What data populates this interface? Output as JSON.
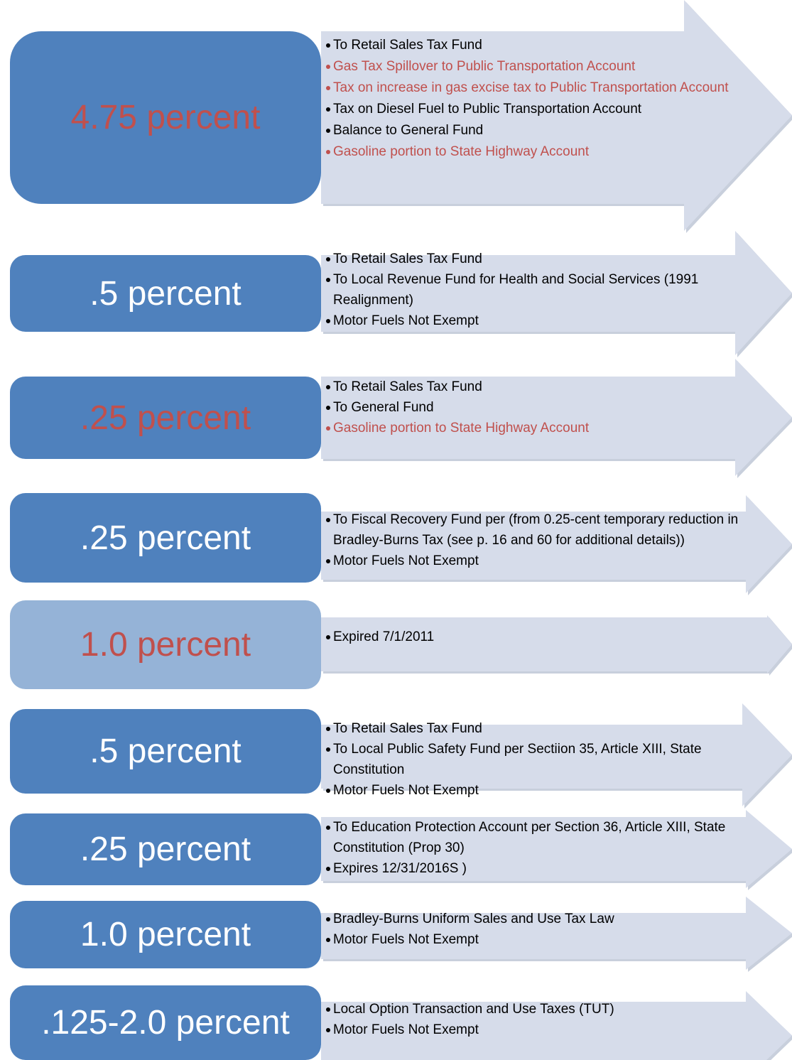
{
  "rows": [
    {
      "label": "4.75 percent",
      "label_color": "#c0504d",
      "box_color": "#4f81bd",
      "items": [
        {
          "text": "To Retail Sales Tax Fund",
          "color": "#000000"
        },
        {
          "text": "Gas Tax Spillover to Public Transportation Account",
          "color": "#c0504d"
        },
        {
          "text": "Tax on increase in gas excise tax to Public Transportation Account",
          "color": "#c0504d"
        },
        {
          "text": "Tax on Diesel Fuel to Public Transportation Account",
          "color": "#000000"
        },
        {
          "text": "Balance to General Fund",
          "color": "#000000"
        },
        {
          "text": "Gasoline portion to State Highway Account",
          "color": "#c0504d"
        }
      ]
    },
    {
      "label": ".5 percent",
      "label_color": "#ffffff",
      "box_color": "#4f81bd",
      "items": [
        {
          "text": "To Retail Sales Tax Fund",
          "color": "#000000"
        },
        {
          "text": "To Local Revenue Fund for Health and Social Services (1991 Realignment)",
          "color": "#000000"
        },
        {
          "text": "Motor Fuels Not Exempt",
          "color": "#000000"
        }
      ]
    },
    {
      "label": ".25 percent",
      "label_color": "#c0504d",
      "box_color": "#4f81bd",
      "items": [
        {
          "text": "To Retail Sales Tax Fund",
          "color": "#000000"
        },
        {
          "text": "To General Fund",
          "color": "#000000"
        },
        {
          "text": "Gasoline portion to State Highway Account",
          "color": "#c0504d"
        }
      ]
    },
    {
      "label": ".25 percent",
      "label_color": "#ffffff",
      "box_color": "#4f81bd",
      "items": [
        {
          "text": "To Fiscal Recovery Fund per (from 0.25-cent temporary reduction in Bradley-Burns Tax (see p. 16 and 60 for additional details))",
          "color": "#000000"
        },
        {
          "text": "Motor Fuels Not Exempt",
          "color": "#000000"
        }
      ]
    },
    {
      "label": "1.0 percent",
      "label_color": "#c0504d",
      "box_color": "#95b3d7",
      "items": [
        {
          "text": "Expired 7/1/2011",
          "color": "#000000"
        }
      ]
    },
    {
      "label": ".5 percent",
      "label_color": "#ffffff",
      "box_color": "#4f81bd",
      "items": [
        {
          "text": "To Retail Sales Tax Fund",
          "color": "#000000"
        },
        {
          "text": "To Local Public Safety Fund per Sectiion 35, Article XIII, State Constitution",
          "color": "#000000"
        },
        {
          "text": "Motor Fuels Not Exempt",
          "color": "#000000"
        }
      ]
    },
    {
      "label": ".25 percent",
      "label_color": "#ffffff",
      "box_color": "#4f81bd",
      "items": [
        {
          "text": "To Education Protection Account per Section 36, Article XIII, State Constitution (Prop 30)",
          "color": "#000000"
        },
        {
          "text": "Expires 12/31/2016S )",
          "color": "#000000"
        }
      ]
    },
    {
      "label": "1.0 percent",
      "label_color": "#ffffff",
      "box_color": "#4f81bd",
      "items": [
        {
          "text": "Bradley-Burns Uniform Sales and Use Tax Law",
          "color": "#000000"
        },
        {
          "text": "Motor Fuels Not Exempt",
          "color": "#000000"
        }
      ]
    },
    {
      "label": ".125-2.0 percent",
      "label_color": "#ffffff",
      "box_color": "#4f81bd",
      "items": [
        {
          "text": "Local Option Transaction and Use Taxes (TUT)",
          "color": "#000000"
        },
        {
          "text": "Motor Fuels Not Exempt",
          "color": "#000000"
        }
      ]
    }
  ]
}
